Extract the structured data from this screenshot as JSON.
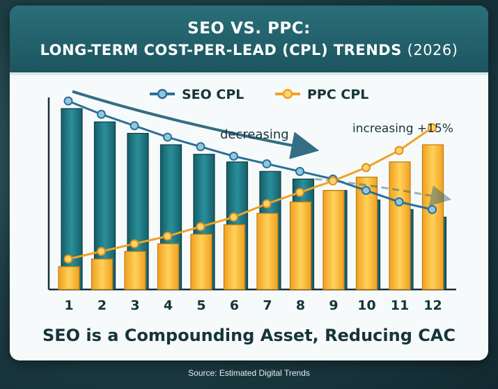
{
  "title": {
    "line1": "SEO VS. PPC:",
    "line2_main": "LONG-TERM COST-PER-LEAD (CPL) TRENDS",
    "line2_year": "(2026)"
  },
  "subtitle": "SEO is a Compounding Asset, Reducing CAC",
  "source": "Source: Estimated Digital Trends",
  "annotations": {
    "decreasing": "decreasing",
    "increasing": "increasing +15%"
  },
  "colors": {
    "seo_bar": "#1f7f8a",
    "seo_line": "#2a6f9a",
    "ppc_bar": "#f5b731",
    "ppc_line": "#f0a224",
    "header": "#1c5560"
  },
  "chart_data": {
    "type": "bar",
    "categories": [
      "1",
      "2",
      "3",
      "4",
      "5",
      "6",
      "7",
      "8",
      "9",
      "10",
      "11",
      "12"
    ],
    "series": [
      {
        "name": "SEO CPL",
        "values": [
          95,
          88,
          82,
          76,
          71,
          67,
          62,
          58,
          52,
          47,
          42,
          38
        ]
      },
      {
        "name": "PPC CPL",
        "values": [
          12,
          16,
          20,
          24,
          29,
          34,
          40,
          46,
          52,
          59,
          67,
          76
        ]
      }
    ],
    "line_overlay": {
      "seo": [
        99,
        92,
        86,
        80,
        75,
        70,
        66,
        62,
        58,
        52,
        46,
        42
      ],
      "ppc": [
        16,
        20,
        24,
        28,
        33,
        38,
        45,
        51,
        57,
        64,
        73,
        85
      ]
    },
    "legend": "top-center",
    "grid": false,
    "title": "SEO VS. PPC: LONG-TERM COST-PER-LEAD (CPL) TRENDS (2026)",
    "xlabel": "",
    "ylabel": "",
    "ylim": [
      0,
      110
    ]
  }
}
